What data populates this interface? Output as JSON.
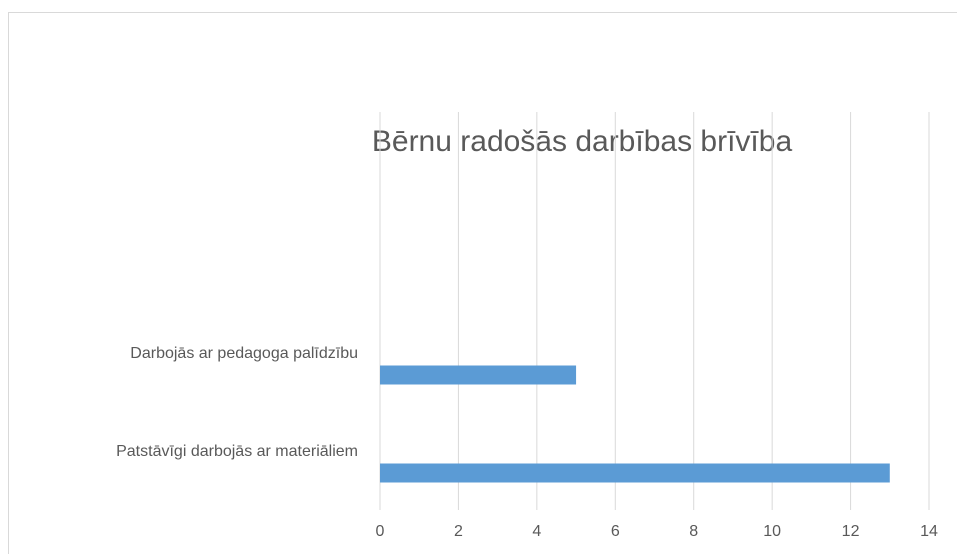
{
  "chart_data": {
    "type": "hbar",
    "title": "Bērnu radošās darbības brīvība",
    "categories": [
      "Darbojās ar pedagoga palīdzību",
      "Patstāvīgi darbojās ar materiāliem"
    ],
    "values": [
      5,
      13
    ],
    "color": "#5b9bd5",
    "xlim": [
      0,
      14
    ],
    "xticks": [
      0,
      2,
      4,
      6,
      8,
      10,
      12,
      14
    ],
    "grid": true
  }
}
